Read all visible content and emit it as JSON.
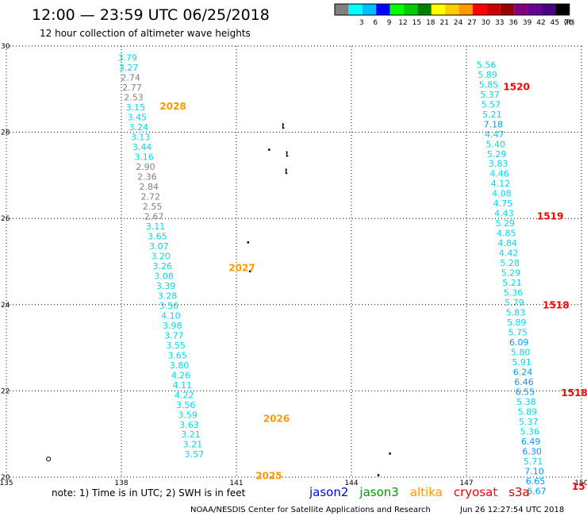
{
  "header": {
    "title": "12:00 — 23:59 UTC 06/25/2018",
    "subtitle": "12 hour collection of altimeter wave heights"
  },
  "legend": {
    "swatches": [
      {
        "color": "#808080",
        "label": ""
      },
      {
        "color": "#00ffff",
        "label": "3"
      },
      {
        "color": "#00bfff",
        "label": "6"
      },
      {
        "color": "#0000ff",
        "label": "9"
      },
      {
        "color": "#00ff00",
        "label": "12"
      },
      {
        "color": "#00cc00",
        "label": "15"
      },
      {
        "color": "#008000",
        "label": "18"
      },
      {
        "color": "#ffff00",
        "label": "21"
      },
      {
        "color": "#ffcc00",
        "label": "24"
      },
      {
        "color": "#ff9900",
        "label": "27"
      },
      {
        "color": "#ff0000",
        "label": "30"
      },
      {
        "color": "#cc0000",
        "label": "33"
      },
      {
        "color": "#990000",
        "label": "36"
      },
      {
        "color": "#800080",
        "label": "39"
      },
      {
        "color": "#660099",
        "label": "42"
      },
      {
        "color": "#4b0082",
        "label": "45"
      },
      {
        "color": "#000000",
        "label": "70"
      }
    ],
    "unit": "(ft)"
  },
  "note": "note: 1) Time is in UTC; 2) SWH is in feet",
  "satellites": [
    {
      "name": "jason2",
      "color": "#0000ff"
    },
    {
      "name": "jason3",
      "color": "#009900"
    },
    {
      "name": "altika",
      "color": "#ff9900"
    },
    {
      "name": "cryosat",
      "color": "#ff0000"
    },
    {
      "name": "s3a",
      "color": "#cc0000"
    }
  ],
  "footer": {
    "credit": "NOAA/NESDIS Center for Satellite Applications and Research",
    "timestamp": "Jun 26 12:27:54 UTC 2018"
  },
  "colors": {
    "cyan": "#00d8e8",
    "gray": "#808080",
    "deep_sky": "#0099ff",
    "orange": "#ff9900",
    "red": "#ff0000"
  },
  "chart_data": {
    "type": "scatter",
    "title": "12 hour collection of altimeter wave heights",
    "x_ticks": [
      "135",
      "138",
      "141",
      "144",
      "147",
      "150"
    ],
    "y_ticks": [
      "20",
      "22",
      "24",
      "26",
      "28",
      "30"
    ],
    "xlim": [
      135,
      150
    ],
    "ylim": [
      20,
      30
    ],
    "grid": true,
    "value_unit": "ft",
    "tracks": [
      {
        "pass_labels": [
          {
            "text": "2028",
            "lon": 139.0,
            "lat": 28.6
          },
          {
            "text": "2027",
            "lon": 140.8,
            "lat": 24.85
          },
          {
            "text": "2026",
            "lon": 141.7,
            "lat": 21.35
          },
          {
            "text": "2025",
            "lon": 141.5,
            "lat": 20.03
          }
        ],
        "points": [
          {
            "lon": 138.16,
            "lat": 29.73,
            "value": "3.79",
            "color": "cyan"
          },
          {
            "lon": 138.19,
            "lat": 29.5,
            "value": "3.27",
            "color": "cyan"
          },
          {
            "lon": 138.24,
            "lat": 29.27,
            "value": "2.74",
            "color": "gray"
          },
          {
            "lon": 138.28,
            "lat": 29.04,
            "value": "2.77",
            "color": "gray"
          },
          {
            "lon": 138.32,
            "lat": 28.81,
            "value": "2.53",
            "color": "gray"
          },
          {
            "lon": 138.37,
            "lat": 28.58,
            "value": "3.15",
            "color": "cyan"
          },
          {
            "lon": 138.41,
            "lat": 28.35,
            "value": "3.45",
            "color": "cyan"
          },
          {
            "lon": 138.45,
            "lat": 28.12,
            "value": "3.24",
            "color": "cyan"
          },
          {
            "lon": 138.5,
            "lat": 27.89,
            "value": "3.13",
            "color": "cyan"
          },
          {
            "lon": 138.54,
            "lat": 27.66,
            "value": "3.44",
            "color": "cyan"
          },
          {
            "lon": 138.59,
            "lat": 27.43,
            "value": "3.16",
            "color": "cyan"
          },
          {
            "lon": 138.63,
            "lat": 27.2,
            "value": "2.90",
            "color": "gray"
          },
          {
            "lon": 138.67,
            "lat": 26.97,
            "value": "2.36",
            "color": "gray"
          },
          {
            "lon": 138.72,
            "lat": 26.74,
            "value": "2.84",
            "color": "gray"
          },
          {
            "lon": 138.76,
            "lat": 26.51,
            "value": "2.72",
            "color": "gray"
          },
          {
            "lon": 138.81,
            "lat": 26.28,
            "value": "2.55",
            "color": "gray"
          },
          {
            "lon": 138.85,
            "lat": 26.05,
            "value": "2.67",
            "color": "gray"
          },
          {
            "lon": 138.89,
            "lat": 25.82,
            "value": "3.11",
            "color": "cyan"
          },
          {
            "lon": 138.94,
            "lat": 25.59,
            "value": "3.65",
            "color": "cyan"
          },
          {
            "lon": 138.98,
            "lat": 25.36,
            "value": "3.07",
            "color": "cyan"
          },
          {
            "lon": 139.03,
            "lat": 25.13,
            "value": "3.20",
            "color": "cyan"
          },
          {
            "lon": 139.07,
            "lat": 24.9,
            "value": "3.26",
            "color": "cyan"
          },
          {
            "lon": 139.11,
            "lat": 24.67,
            "value": "3.08",
            "color": "cyan"
          },
          {
            "lon": 139.16,
            "lat": 24.44,
            "value": "3.39",
            "color": "cyan"
          },
          {
            "lon": 139.2,
            "lat": 24.21,
            "value": "3.28",
            "color": "cyan"
          },
          {
            "lon": 139.24,
            "lat": 23.98,
            "value": "3.56",
            "color": "cyan"
          },
          {
            "lon": 139.29,
            "lat": 23.75,
            "value": "4.10",
            "color": "cyan"
          },
          {
            "lon": 139.33,
            "lat": 23.52,
            "value": "3.98",
            "color": "cyan"
          },
          {
            "lon": 139.37,
            "lat": 23.29,
            "value": "3.77",
            "color": "cyan"
          },
          {
            "lon": 139.42,
            "lat": 23.06,
            "value": "3.55",
            "color": "cyan"
          },
          {
            "lon": 139.46,
            "lat": 22.83,
            "value": "3.65",
            "color": "cyan"
          },
          {
            "lon": 139.51,
            "lat": 22.6,
            "value": "3.80",
            "color": "cyan"
          },
          {
            "lon": 139.55,
            "lat": 22.37,
            "value": "4.26",
            "color": "cyan"
          },
          {
            "lon": 139.59,
            "lat": 22.14,
            "value": "4.11",
            "color": "cyan"
          },
          {
            "lon": 139.64,
            "lat": 21.91,
            "value": "4.22",
            "color": "cyan"
          },
          {
            "lon": 139.68,
            "lat": 21.68,
            "value": "3.56",
            "color": "cyan"
          },
          {
            "lon": 139.73,
            "lat": 21.45,
            "value": "3.59",
            "color": "cyan"
          },
          {
            "lon": 139.77,
            "lat": 21.22,
            "value": "3.63",
            "color": "cyan"
          },
          {
            "lon": 139.81,
            "lat": 20.99,
            "value": "3.21",
            "color": "cyan"
          },
          {
            "lon": 139.86,
            "lat": 20.76,
            "value": "3.21",
            "color": "cyan"
          },
          {
            "lon": 139.9,
            "lat": 20.53,
            "value": "3.57",
            "color": "cyan"
          }
        ]
      },
      {
        "pass_labels": [
          {
            "text": "1520",
            "lon": 147.96,
            "lat": 29.05
          },
          {
            "text": "1519",
            "lon": 148.84,
            "lat": 26.05
          },
          {
            "text": "1518",
            "lon": 148.99,
            "lat": 23.99
          },
          {
            "text": "1518",
            "lon": 149.47,
            "lat": 21.95
          },
          {
            "text": "15",
            "lon": 149.75,
            "lat": 19.78
          }
        ],
        "points": [
          {
            "lon": 147.52,
            "lat": 29.57,
            "value": "5.56",
            "color": "cyan"
          },
          {
            "lon": 147.55,
            "lat": 29.34,
            "value": "5.89",
            "color": "cyan"
          },
          {
            "lon": 147.58,
            "lat": 29.11,
            "value": "5.85",
            "color": "cyan"
          },
          {
            "lon": 147.61,
            "lat": 28.88,
            "value": "5.37",
            "color": "cyan"
          },
          {
            "lon": 147.64,
            "lat": 28.65,
            "value": "5.57",
            "color": "cyan"
          },
          {
            "lon": 147.67,
            "lat": 28.42,
            "value": "5.21",
            "color": "cyan"
          },
          {
            "lon": 147.7,
            "lat": 28.19,
            "value": "7.18",
            "color": "deep_sky"
          },
          {
            "lon": 147.73,
            "lat": 27.96,
            "value": "4.47",
            "color": "cyan"
          },
          {
            "lon": 147.76,
            "lat": 27.73,
            "value": "5.40",
            "color": "cyan"
          },
          {
            "lon": 147.79,
            "lat": 27.5,
            "value": "5.29",
            "color": "cyan"
          },
          {
            "lon": 147.83,
            "lat": 27.27,
            "value": "3.83",
            "color": "cyan"
          },
          {
            "lon": 147.86,
            "lat": 27.04,
            "value": "4.46",
            "color": "cyan"
          },
          {
            "lon": 147.89,
            "lat": 26.81,
            "value": "4.12",
            "color": "cyan"
          },
          {
            "lon": 147.92,
            "lat": 26.58,
            "value": "4.08",
            "color": "cyan"
          },
          {
            "lon": 147.95,
            "lat": 26.35,
            "value": "4.75",
            "color": "cyan"
          },
          {
            "lon": 147.98,
            "lat": 26.12,
            "value": "4.43",
            "color": "cyan"
          },
          {
            "lon": 148.01,
            "lat": 25.89,
            "value": "5.29",
            "color": "cyan"
          },
          {
            "lon": 148.04,
            "lat": 25.66,
            "value": "4.85",
            "color": "cyan"
          },
          {
            "lon": 148.07,
            "lat": 25.43,
            "value": "4.84",
            "color": "cyan"
          },
          {
            "lon": 148.1,
            "lat": 25.2,
            "value": "4.42",
            "color": "cyan"
          },
          {
            "lon": 148.13,
            "lat": 24.97,
            "value": "5.28",
            "color": "cyan"
          },
          {
            "lon": 148.16,
            "lat": 24.74,
            "value": "5.29",
            "color": "cyan"
          },
          {
            "lon": 148.19,
            "lat": 24.51,
            "value": "5.21",
            "color": "cyan"
          },
          {
            "lon": 148.22,
            "lat": 24.28,
            "value": "5.36",
            "color": "cyan"
          },
          {
            "lon": 148.25,
            "lat": 24.05,
            "value": "5.79",
            "color": "cyan"
          },
          {
            "lon": 148.28,
            "lat": 23.82,
            "value": "5.83",
            "color": "cyan"
          },
          {
            "lon": 148.31,
            "lat": 23.59,
            "value": "5.89",
            "color": "cyan"
          },
          {
            "lon": 148.34,
            "lat": 23.36,
            "value": "5.75",
            "color": "cyan"
          },
          {
            "lon": 148.37,
            "lat": 23.13,
            "value": "6.09",
            "color": "deep_sky"
          },
          {
            "lon": 148.41,
            "lat": 22.9,
            "value": "5.80",
            "color": "cyan"
          },
          {
            "lon": 148.44,
            "lat": 22.67,
            "value": "5.91",
            "color": "cyan"
          },
          {
            "lon": 148.47,
            "lat": 22.44,
            "value": "6.24",
            "color": "deep_sky"
          },
          {
            "lon": 148.5,
            "lat": 22.21,
            "value": "6.46",
            "color": "deep_sky"
          },
          {
            "lon": 148.53,
            "lat": 21.98,
            "value": "6.55",
            "color": "deep_sky"
          },
          {
            "lon": 148.56,
            "lat": 21.75,
            "value": "5.38",
            "color": "cyan"
          },
          {
            "lon": 148.59,
            "lat": 21.52,
            "value": "5.89",
            "color": "cyan"
          },
          {
            "lon": 148.62,
            "lat": 21.29,
            "value": "5.37",
            "color": "cyan"
          },
          {
            "lon": 148.65,
            "lat": 21.06,
            "value": "5.36",
            "color": "cyan"
          },
          {
            "lon": 148.68,
            "lat": 20.83,
            "value": "6.49",
            "color": "deep_sky"
          },
          {
            "lon": 148.71,
            "lat": 20.6,
            "value": "6.30",
            "color": "deep_sky"
          },
          {
            "lon": 148.74,
            "lat": 20.37,
            "value": "5.71",
            "color": "cyan"
          },
          {
            "lon": 148.77,
            "lat": 20.14,
            "value": "7.10",
            "color": "deep_sky"
          },
          {
            "lon": 148.8,
            "lat": 19.91,
            "value": "6.65",
            "color": "deep_sky"
          },
          {
            "lon": 148.83,
            "lat": 19.68,
            "value": "6.67",
            "color": "deep_sky"
          }
        ]
      }
    ],
    "land": [
      {
        "lon": 142.2,
        "lat": 28.15,
        "shape": "island"
      },
      {
        "lon": 142.3,
        "lat": 27.5,
        "shape": "island"
      },
      {
        "lon": 142.28,
        "lat": 27.1,
        "shape": "island"
      },
      {
        "lon": 141.85,
        "lat": 27.6,
        "shape": "dot"
      },
      {
        "lon": 141.3,
        "lat": 25.45,
        "shape": "dot"
      },
      {
        "lon": 141.35,
        "lat": 24.78,
        "shape": "dot"
      },
      {
        "lon": 145.0,
        "lat": 20.55,
        "shape": "dot"
      },
      {
        "lon": 144.7,
        "lat": 20.05,
        "shape": "dot"
      },
      {
        "lon": 136.1,
        "lat": 20.42,
        "shape": "ring"
      }
    ]
  }
}
